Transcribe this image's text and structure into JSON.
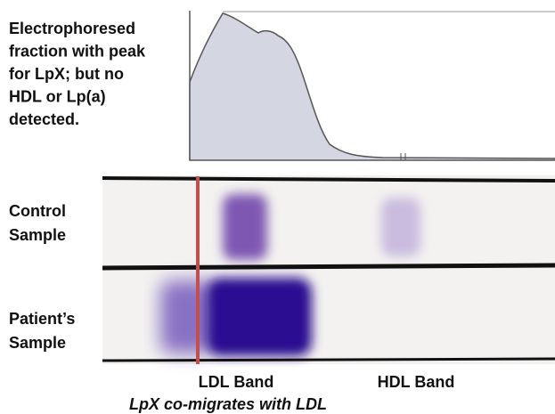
{
  "trace_label": [
    "Electrophoresed",
    "fraction with peak",
    "for LpX; but no",
    "HDL or Lp(a)",
    "detected."
  ],
  "rows": [
    {
      "label": [
        "Control",
        "Sample"
      ]
    },
    {
      "label": [
        "Patient’s",
        "Sample"
      ]
    }
  ],
  "bands": [
    "LDL Band",
    "HDL Band"
  ],
  "caption": "LpX co-migrates with LDL"
}
